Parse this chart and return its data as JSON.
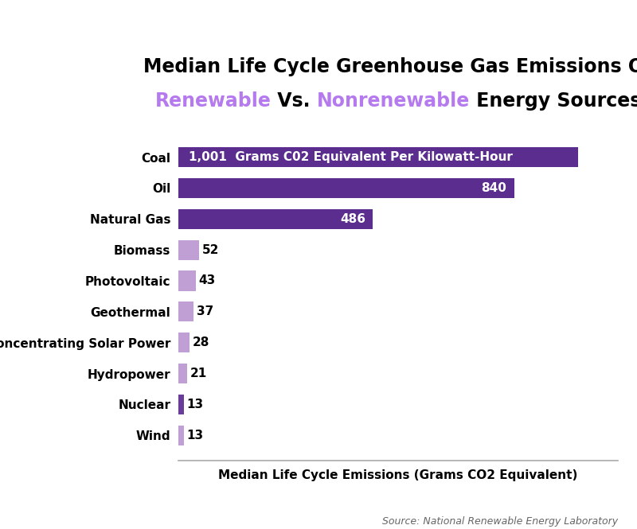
{
  "categories": [
    "Coal",
    "Oil",
    "Natural Gas",
    "Biomass",
    "Photovoltaic",
    "Geothermal",
    "Concentrating Solar Power",
    "Hydropower",
    "Nuclear",
    "Wind"
  ],
  "values": [
    1001,
    840,
    486,
    52,
    43,
    37,
    28,
    21,
    13,
    13
  ],
  "bar_colors": [
    "#5b2d8e",
    "#5b2d8e",
    "#5b2d8e",
    "#c09fd4",
    "#c09fd4",
    "#c09fd4",
    "#c09fd4",
    "#c09fd4",
    "#6a3d9a",
    "#c09fd4"
  ],
  "title_line1": "Median Life Cycle Greenhouse Gas Emissions Of",
  "title_line2_parts": [
    [
      "Renewable",
      "#b57bee"
    ],
    [
      " Vs. ",
      "#000000"
    ],
    [
      "Nonrenewable",
      "#b57bee"
    ],
    [
      " Energy Sources",
      "#000000"
    ]
  ],
  "xlabel": "Median Life Cycle Emissions (Grams CO2 Equivalent)",
  "source_text": "Source: National Renewable Energy Laboratory",
  "coal_inside_label": "1,001  Grams C02 Equivalent Per Kilowatt-Hour",
  "value_labels": [
    "1,001",
    "840",
    "486",
    "52",
    "43",
    "37",
    "28",
    "21",
    "13",
    "13"
  ],
  "label_colors": [
    "#ffffff",
    "#ffffff",
    "#ffffff",
    "#000000",
    "#000000",
    "#000000",
    "#000000",
    "#000000",
    "#000000",
    "#000000"
  ],
  "xlim": [
    0,
    1100
  ],
  "background_color": "#ffffff",
  "title_fontsize": 17,
  "bar_label_fontsize": 11,
  "ytick_fontsize": 11
}
